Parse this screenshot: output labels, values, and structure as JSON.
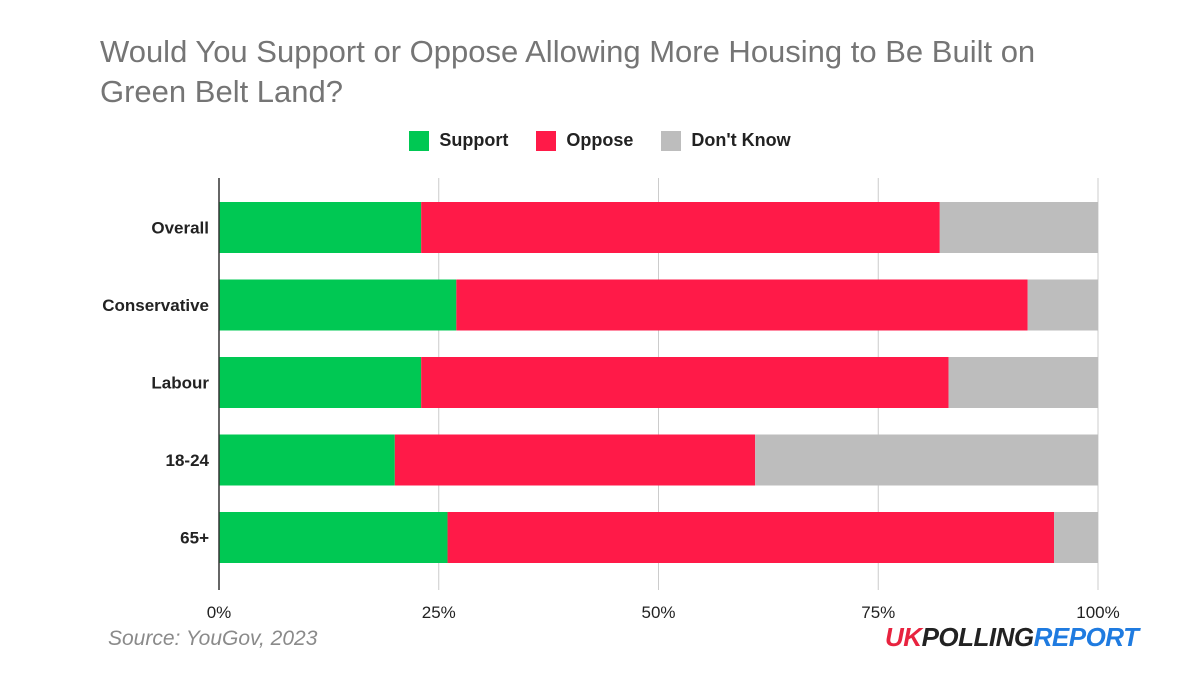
{
  "chart_data": {
    "type": "bar",
    "orientation": "horizontal",
    "stacked": true,
    "title": "Would You Support or Oppose Allowing More Housing to Be Built on Green Belt Land?",
    "categories": [
      "Overall",
      "Conservative",
      "Labour",
      "18-24",
      "65+"
    ],
    "series": [
      {
        "name": "Support",
        "color": "#00c853",
        "values": [
          23,
          27,
          23,
          20,
          26
        ]
      },
      {
        "name": "Oppose",
        "color": "#ff1a48",
        "values": [
          59,
          65,
          60,
          41,
          69
        ]
      },
      {
        "name": "Don't Know",
        "color": "#bdbdbd",
        "values": [
          18,
          8,
          17,
          39,
          5
        ]
      }
    ],
    "xticks": [
      "0%",
      "25%",
      "50%",
      "75%",
      "100%"
    ],
    "xlim": [
      0,
      100
    ],
    "grid": true,
    "legend_position": "top"
  },
  "footer": {
    "source": "Source: YouGov, 2023",
    "logo_part1": "UK",
    "logo_part2": "POLLING",
    "logo_part3": "REPORT"
  }
}
